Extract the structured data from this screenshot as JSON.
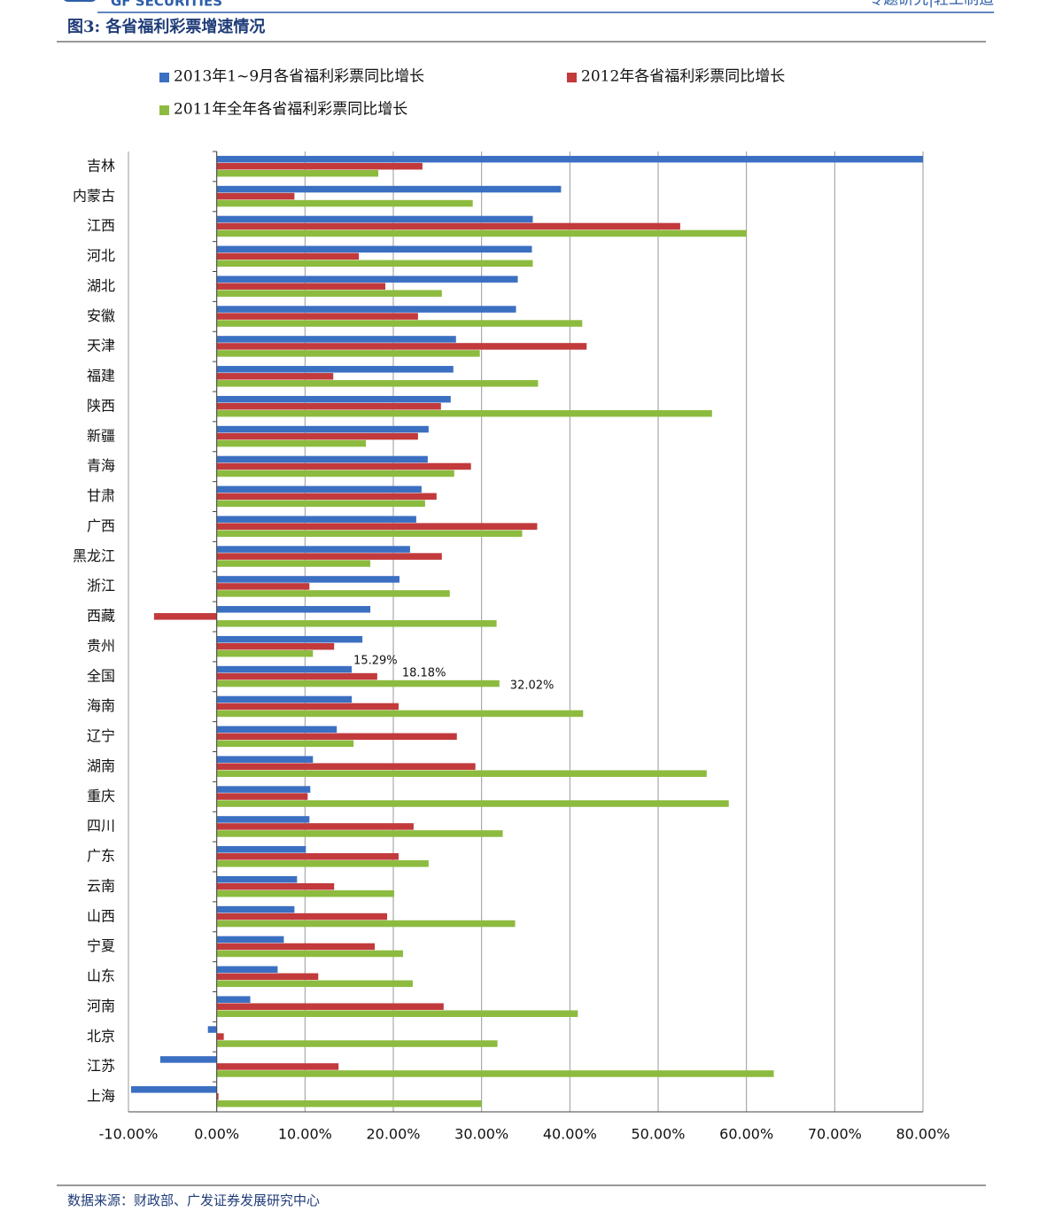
{
  "header": {
    "logo": "GF SECURITIES",
    "section": "专题研究|轻工制造"
  },
  "figure_title": "图3:  各省福利彩票增速情况",
  "source": "数据来源：财政部、广发证券发展研究中心",
  "chart_data": {
    "type": "hbar",
    "categories": [
      "吉林",
      "内蒙古",
      "江西",
      "河北",
      "湖北",
      "安徽",
      "天津",
      "福建",
      "陕西",
      "新疆",
      "青海",
      "甘肃",
      "广西",
      "黑龙江",
      "浙江",
      "西藏",
      "贵州",
      "全国",
      "海南",
      "辽宁",
      "湖南",
      "重庆",
      "四川",
      "广东",
      "云南",
      "山西",
      "宁夏",
      "山东",
      "河南",
      "北京",
      "江苏",
      "上海"
    ],
    "series": [
      {
        "name": "2013年1~9月各省福利彩票同比增长",
        "color": "#3b6fc2",
        "values": [
          80,
          39.0,
          35.8,
          35.7,
          34.1,
          33.9,
          27.1,
          26.8,
          26.5,
          24.0,
          23.9,
          23.2,
          22.6,
          21.9,
          20.7,
          17.4,
          16.5,
          15.29,
          15.3,
          13.6,
          10.9,
          10.6,
          10.5,
          10.1,
          9.1,
          8.8,
          7.6,
          6.9,
          3.8,
          -1.0,
          -6.4,
          -9.7
        ],
        "value_labels": [
          null,
          null,
          null,
          null,
          null,
          null,
          null,
          null,
          null,
          null,
          null,
          null,
          null,
          null,
          null,
          null,
          null,
          "15.29%",
          null,
          null,
          null,
          null,
          null,
          null,
          null,
          null,
          null,
          null,
          null,
          null,
          null,
          null
        ]
      },
      {
        "name": "2012年各省福利彩票同比增长",
        "color": "#c23a3c",
        "values": [
          23.3,
          8.8,
          52.5,
          16.1,
          19.1,
          22.8,
          41.9,
          13.2,
          25.4,
          22.8,
          28.8,
          24.9,
          36.3,
          25.5,
          10.5,
          -7.1,
          13.3,
          18.18,
          20.6,
          27.2,
          29.3,
          10.3,
          22.3,
          20.6,
          13.3,
          19.3,
          17.9,
          11.5,
          25.7,
          0.8,
          13.8,
          0.2
        ],
        "value_labels": [
          null,
          null,
          null,
          null,
          null,
          null,
          null,
          null,
          null,
          null,
          null,
          null,
          null,
          null,
          null,
          null,
          null,
          "18.18%",
          null,
          null,
          null,
          null,
          null,
          null,
          null,
          null,
          null,
          null,
          null,
          null,
          null,
          null
        ]
      },
      {
        "name": "2011年全年各省福利彩票同比增长",
        "color": "#8dbb3f",
        "values": [
          18.3,
          29.0,
          60.0,
          35.8,
          25.5,
          41.4,
          29.8,
          36.4,
          56.1,
          16.9,
          26.9,
          23.6,
          34.6,
          17.4,
          26.4,
          31.7,
          10.9,
          32.02,
          41.5,
          15.5,
          55.5,
          58.0,
          32.4,
          24.0,
          20.1,
          33.8,
          21.1,
          22.2,
          40.9,
          31.8,
          63.1,
          30.0
        ],
        "value_labels": [
          null,
          null,
          null,
          null,
          null,
          null,
          null,
          null,
          null,
          null,
          null,
          null,
          null,
          null,
          null,
          null,
          null,
          "32.02%",
          null,
          null,
          null,
          null,
          null,
          null,
          null,
          null,
          null,
          null,
          null,
          null,
          null,
          null
        ]
      }
    ],
    "xlim": [
      -10,
      80
    ],
    "xticks": [
      {
        "value": -10,
        "label": "-10.00%"
      },
      {
        "value": 0,
        "label": "0.00%"
      },
      {
        "value": 10,
        "label": "10.00%"
      },
      {
        "value": 20,
        "label": "20.00%"
      },
      {
        "value": 30,
        "label": "30.00%"
      },
      {
        "value": 40,
        "label": "40.00%"
      },
      {
        "value": 50,
        "label": "50.00%"
      },
      {
        "value": 60,
        "label": "60.00%"
      },
      {
        "value": 70,
        "label": "70.00%"
      },
      {
        "value": 80,
        "label": "80.00%"
      }
    ],
    "grid": true
  }
}
